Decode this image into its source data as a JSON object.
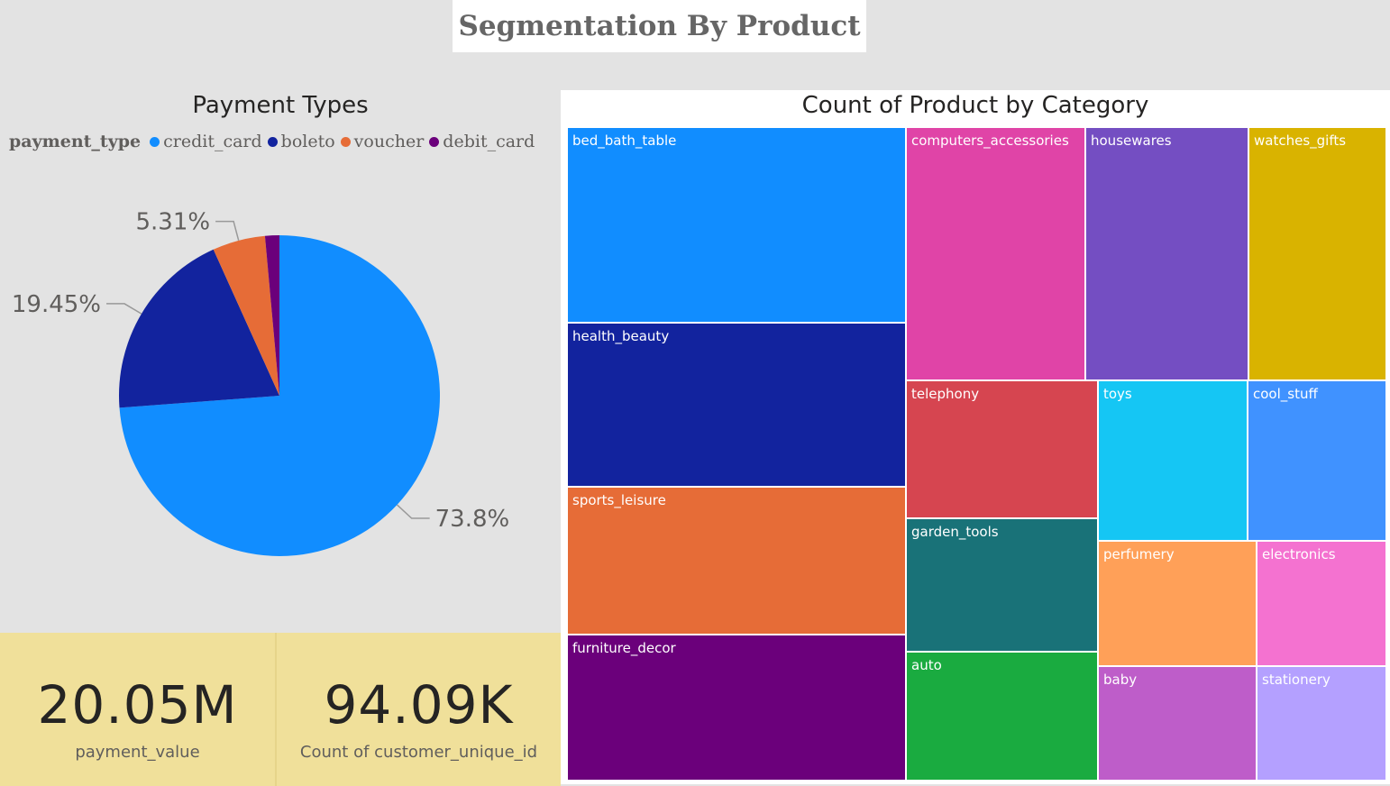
{
  "page_title": "Segmentation By Product",
  "pie": {
    "title": "Payment Types",
    "legend_title": "payment_type"
  },
  "cards": [
    {
      "value": "20.05M",
      "label": "payment_value"
    },
    {
      "value": "94.09K",
      "label": "Count of customer_unique_id"
    }
  ],
  "treemap": {
    "title": "Count of Product by Category"
  },
  "chart_data": [
    {
      "type": "pie",
      "title": "Payment Types",
      "legend_title": "payment_type",
      "legend_position": "top-left",
      "slices": [
        {
          "name": "credit_card",
          "value": 73.8,
          "label": "73.8%",
          "color": "#118DFF"
        },
        {
          "name": "boleto",
          "value": 19.45,
          "label": "19.45%",
          "color": "#12239E"
        },
        {
          "name": "voucher",
          "value": 5.31,
          "label": "5.31%",
          "color": "#E66C37"
        },
        {
          "name": "debit_card",
          "value": 1.44,
          "label": "",
          "color": "#6B007B"
        }
      ]
    },
    {
      "type": "treemap",
      "title": "Count of Product by Category",
      "categories": [
        {
          "name": "bed_bath_table",
          "color": "#118DFF"
        },
        {
          "name": "health_beauty",
          "color": "#12239E"
        },
        {
          "name": "sports_leisure",
          "color": "#E66C37"
        },
        {
          "name": "furniture_decor",
          "color": "#6B007B"
        },
        {
          "name": "computers_accessories",
          "color": "#E044A7"
        },
        {
          "name": "housewares",
          "color": "#744EC2"
        },
        {
          "name": "watches_gifts",
          "color": "#D9B300"
        },
        {
          "name": "telephony",
          "color": "#D64550"
        },
        {
          "name": "garden_tools",
          "color": "#197278"
        },
        {
          "name": "auto",
          "color": "#1AAB40"
        },
        {
          "name": "toys",
          "color": "#15C6F4"
        },
        {
          "name": "cool_stuff",
          "color": "#4092FF"
        },
        {
          "name": "perfumery",
          "color": "#FFA058"
        },
        {
          "name": "electronics",
          "color": "#F472D0"
        },
        {
          "name": "baby",
          "color": "#BE5DC9"
        },
        {
          "name": "stationery",
          "color": "#B4A0FF"
        }
      ]
    }
  ]
}
